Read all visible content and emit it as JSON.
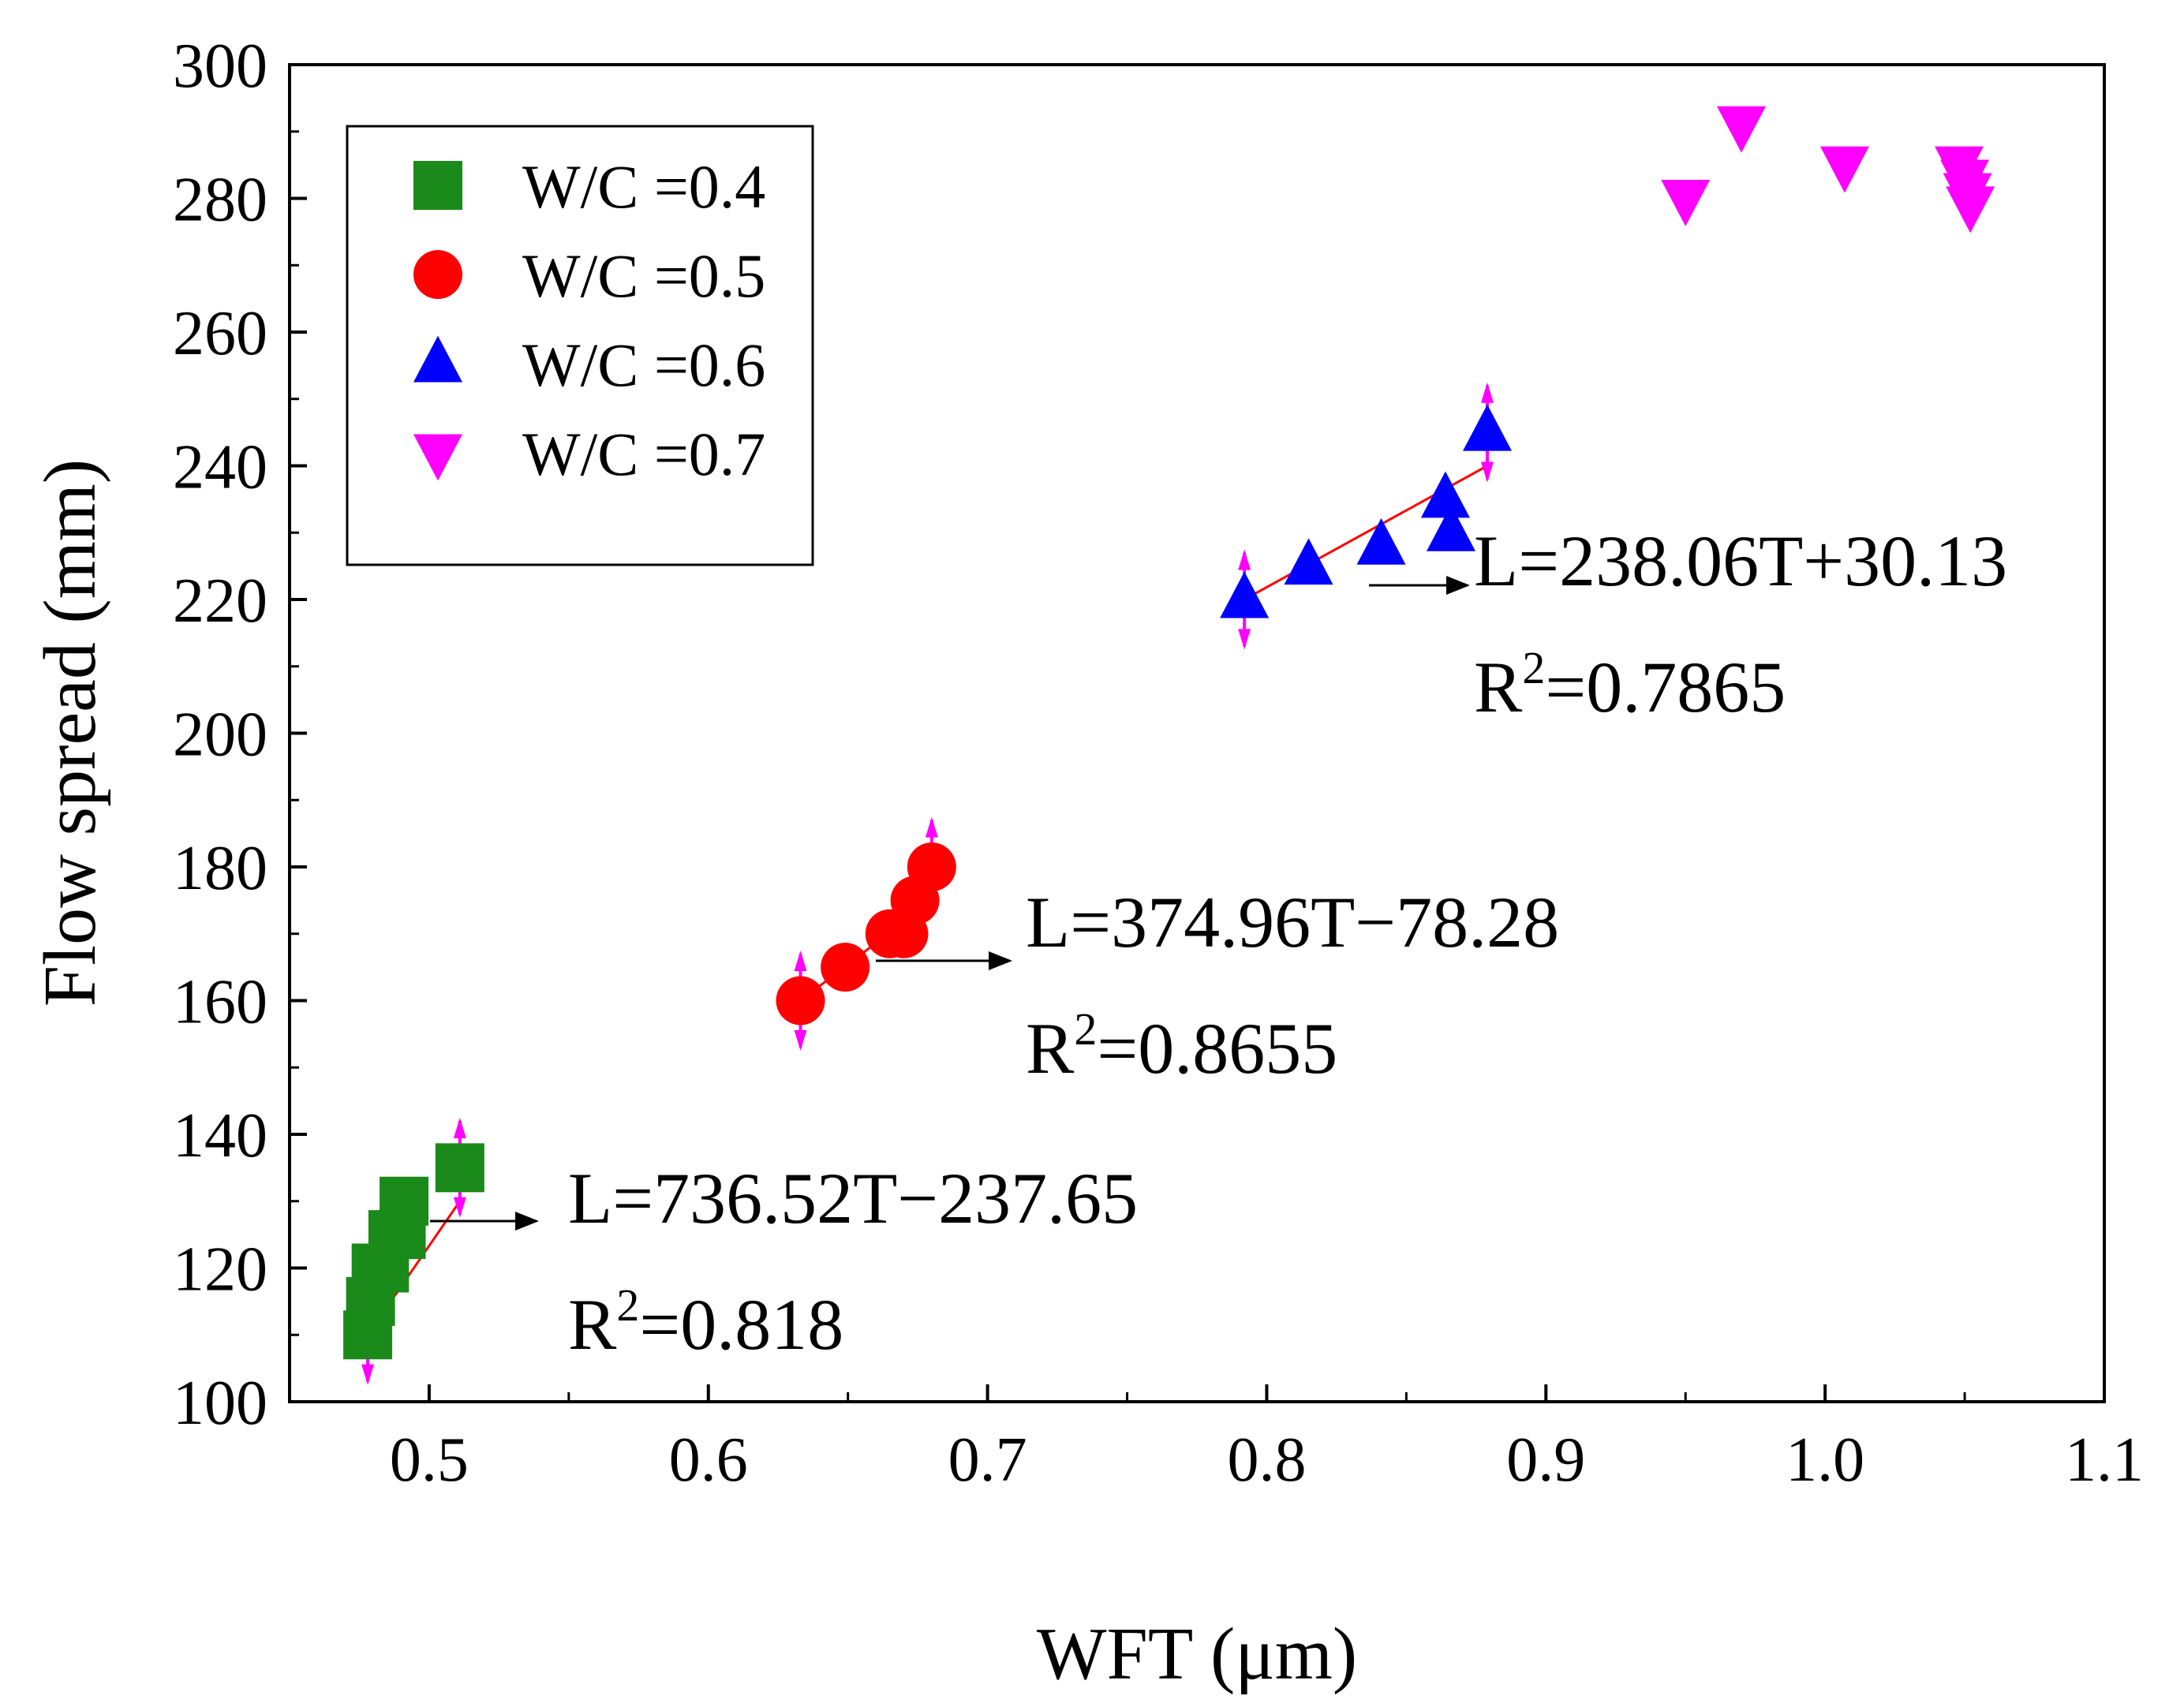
{
  "chart_data": {
    "type": "scatter",
    "xlabel": "WFT (μm)",
    "ylabel": "Flow spread (mm)",
    "xlim": [
      0.45,
      1.1
    ],
    "ylim": [
      100,
      300
    ],
    "xticks": [
      0.5,
      0.6,
      0.7,
      0.8,
      0.9,
      1.0,
      1.1
    ],
    "xtick_labels": [
      "0.5",
      "0.6",
      "0.7",
      "0.8",
      "0.9",
      "1.0",
      "1.1"
    ],
    "yticks": [
      100,
      120,
      140,
      160,
      180,
      200,
      220,
      240,
      260,
      280,
      300
    ],
    "ytick_labels": [
      "100",
      "120",
      "140",
      "160",
      "180",
      "200",
      "220",
      "240",
      "260",
      "280",
      "300"
    ],
    "legend_position": "top-left",
    "grid": false,
    "series": [
      {
        "name": "W/C =0.4",
        "marker": "square",
        "color": "#1a8a1a",
        "x": [
          0.478,
          0.479,
          0.481,
          0.484,
          0.487,
          0.49,
          0.491,
          0.511
        ],
        "y": [
          110,
          115,
          120,
          120,
          125,
          125,
          130,
          135
        ],
        "fit": {
          "equation": "L=736.52T−237.65",
          "r2_prefix": "R",
          "r2_sup": "2",
          "r2_value": "=0.818",
          "x_range": [
            0.478,
            0.511
          ]
        },
        "error_bars": [
          {
            "x": 0.478,
            "y": 110,
            "err": 7
          },
          {
            "x": 0.511,
            "y": 135,
            "err": 7
          }
        ]
      },
      {
        "name": "W/C =0.5",
        "marker": "circle",
        "color": "#ff0000",
        "x": [
          0.633,
          0.649,
          0.665,
          0.67,
          0.674,
          0.68
        ],
        "y": [
          160,
          165,
          170,
          170,
          175,
          180
        ],
        "fit": {
          "equation": "L=374.96T−78.28",
          "r2_prefix": "R",
          "r2_sup": "2",
          "r2_value": "=0.8655",
          "x_range": [
            0.633,
            0.68
          ]
        },
        "error_bars": [
          {
            "x": 0.633,
            "y": 160,
            "err": 7
          },
          {
            "x": 0.68,
            "y": 180,
            "err": 7
          }
        ]
      },
      {
        "name": "W/C =0.6",
        "marker": "triangle-up",
        "color": "#0000ff",
        "x": [
          0.792,
          0.815,
          0.841,
          0.864,
          0.866,
          0.879
        ],
        "y": [
          220,
          225,
          228,
          235,
          230,
          245
        ],
        "fit": {
          "equation": "L=238.06T+30.13",
          "r2_prefix": "R",
          "r2_sup": "2",
          "r2_value": "=0.7865",
          "x_range": [
            0.792,
            0.879
          ]
        },
        "error_bars": [
          {
            "x": 0.792,
            "y": 220,
            "err": 7
          },
          {
            "x": 0.879,
            "y": 245,
            "err": 7
          }
        ]
      },
      {
        "name": "W/C =0.7",
        "marker": "triangle-down",
        "color": "#ff00ff",
        "x": [
          0.95,
          0.97,
          1.007,
          1.048,
          1.05,
          1.051,
          1.052
        ],
        "y": [
          280,
          291,
          285,
          285,
          283,
          281,
          279
        ]
      }
    ],
    "colors": {
      "fit_line": "#ff0000",
      "error_bar": "#ff00ff",
      "arrow": "#000000"
    }
  }
}
